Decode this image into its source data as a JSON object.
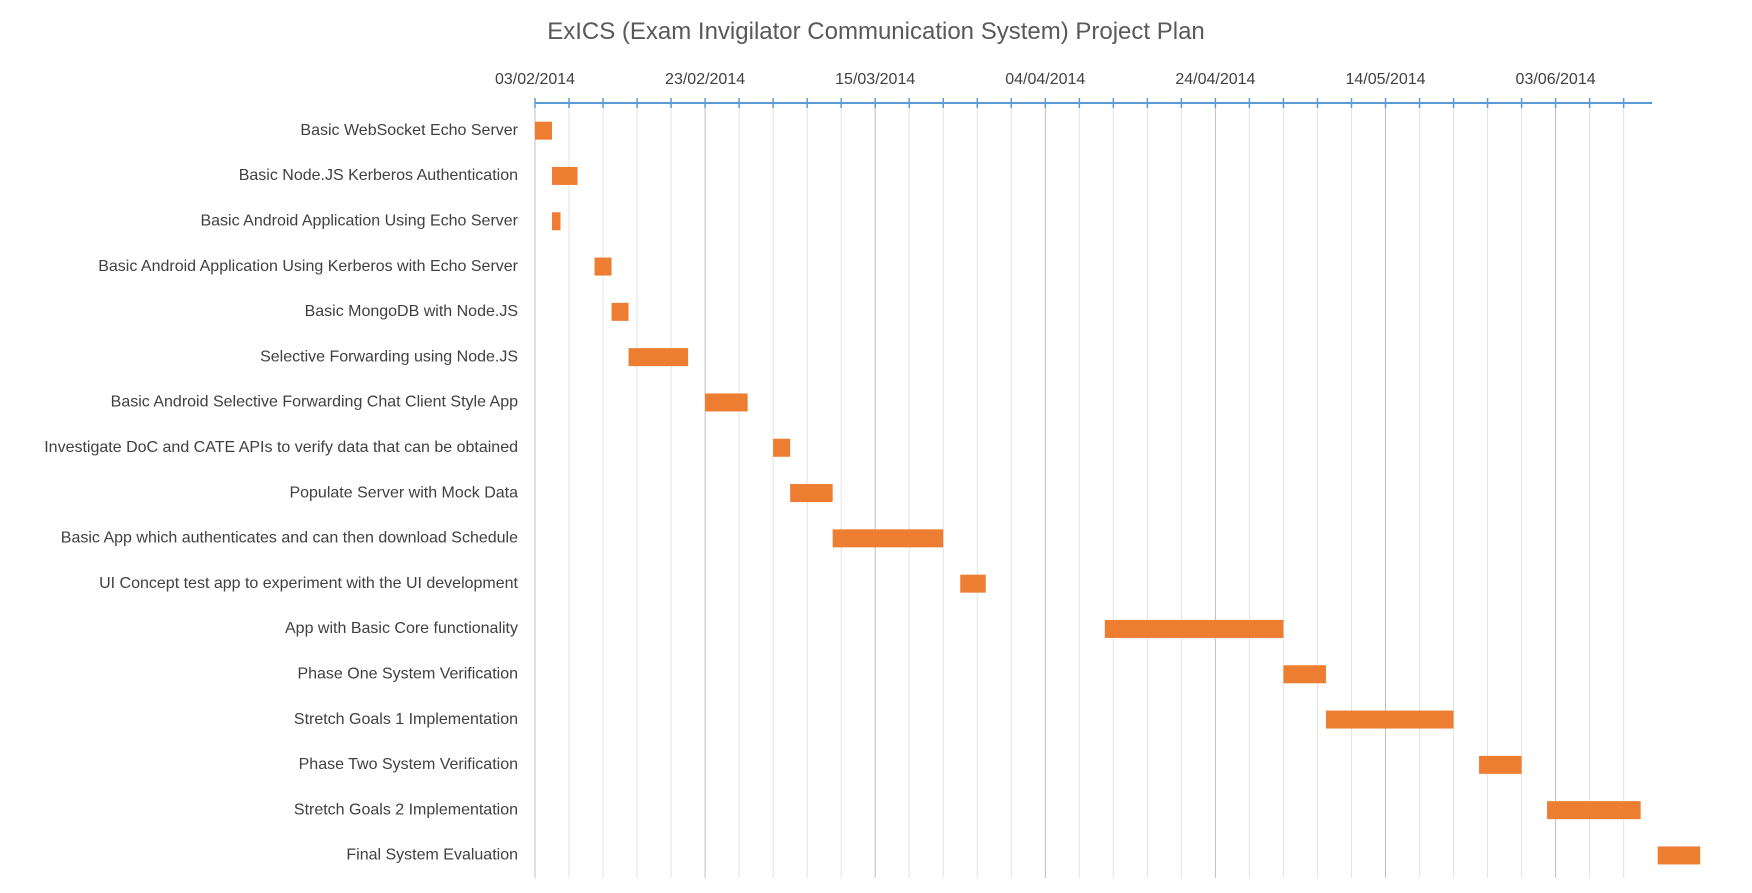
{
  "chart_data": {
    "type": "bar",
    "subtype": "gantt",
    "title": "ExICS (Exam Invigilator Communication System) Project Plan",
    "xlabel": "",
    "ylabel": "",
    "x_axis_position": "top",
    "x_range": [
      "03/02/2014",
      "14/06/2014"
    ],
    "x_ticks": [
      "03/02/2014",
      "23/02/2014",
      "15/03/2014",
      "04/04/2014",
      "24/04/2014",
      "14/05/2014",
      "03/06/2014"
    ],
    "minor_gridline_interval_days": 4,
    "grid": true,
    "legend": "none",
    "bar_color": "#ED7D31",
    "axis_color": "#5B9BD5",
    "tasks": [
      {
        "name": "Basic WebSocket Echo Server",
        "start": "03/02/2014",
        "end": "05/02/2014"
      },
      {
        "name": "Basic Node.JS Kerberos Authentication",
        "start": "05/02/2014",
        "end": "08/02/2014"
      },
      {
        "name": "Basic Android Application Using Echo Server",
        "start": "05/02/2014",
        "end": "06/02/2014"
      },
      {
        "name": "Basic Android Application Using Kerberos with Echo Server",
        "start": "10/02/2014",
        "end": "12/02/2014"
      },
      {
        "name": "Basic MongoDB with Node.JS",
        "start": "12/02/2014",
        "end": "14/02/2014"
      },
      {
        "name": "Selective Forwarding using Node.JS",
        "start": "14/02/2014",
        "end": "21/02/2014"
      },
      {
        "name": "Basic Android Selective Forwarding Chat Client Style App",
        "start": "23/02/2014",
        "end": "28/02/2014"
      },
      {
        "name": "Investigate DoC and CATE APIs to verify data that can be obtained",
        "start": "03/03/2014",
        "end": "05/03/2014"
      },
      {
        "name": "Populate Server with Mock Data",
        "start": "05/03/2014",
        "end": "10/03/2014"
      },
      {
        "name": "Basic App which authenticates and can then download Schedule",
        "start": "10/03/2014",
        "end": "23/03/2014"
      },
      {
        "name": "UI Concept test app to experiment with the UI development",
        "start": "25/03/2014",
        "end": "28/03/2014"
      },
      {
        "name": "App with Basic Core functionality",
        "start": "11/04/2014",
        "end": "02/05/2014"
      },
      {
        "name": "Phase One System Verification",
        "start": "02/05/2014",
        "end": "07/05/2014"
      },
      {
        "name": "Stretch Goals 1 Implementation",
        "start": "07/05/2014",
        "end": "22/05/2014"
      },
      {
        "name": "Phase Two System Verification",
        "start": "25/05/2014",
        "end": "30/05/2014"
      },
      {
        "name": "Stretch Goals 2 Implementation",
        "start": "02/06/2014",
        "end": "13/06/2014"
      },
      {
        "name": "Final System Evaluation",
        "start": "15/06/2014",
        "end": "20/06/2014"
      }
    ]
  }
}
